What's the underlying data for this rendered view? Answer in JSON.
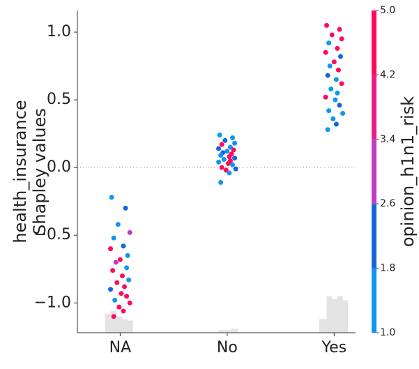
{
  "chart_data": {
    "type": "scatter",
    "ylabel": [
      "health_insurance",
      "Shapley values"
    ],
    "colorbar_label": "opinion_h1n1_risk",
    "xlim": [
      -0.4,
      2.2
    ],
    "ylim": [
      -1.22,
      1.16
    ],
    "xticks": [
      {
        "value": 0,
        "label": "NA"
      },
      {
        "value": 1,
        "label": "No"
      },
      {
        "value": 2,
        "label": "Yes"
      }
    ],
    "yticks": [
      {
        "value": 1,
        "label": "1.0"
      },
      {
        "value": 0.5,
        "label": "0.5"
      },
      {
        "value": 0,
        "label": "0.0"
      },
      {
        "value": -0.5,
        "label": "−0.5"
      },
      {
        "value": -1,
        "label": "−1.0"
      }
    ],
    "colorbar_ticks": [
      {
        "value": 1,
        "label": "1.0"
      },
      {
        "value": 1.8,
        "label": "1.8"
      },
      {
        "value": 2.6,
        "label": "2.6"
      },
      {
        "value": 3.4,
        "label": "3.4"
      },
      {
        "value": 4.2,
        "label": "4.2"
      },
      {
        "value": 5,
        "label": "5.0"
      }
    ],
    "colorbar_colors": [
      "#0d97f2",
      "#1565dd",
      "#c23bc4",
      "#ec1c88",
      "#ff0a5e"
    ],
    "zero_line": true,
    "x": [
      -0.08,
      0.05,
      -0.02,
      0.09,
      -0.06,
      0.03,
      -0.09,
      0.07,
      0.0,
      -0.04,
      0.06,
      -0.07,
      0.02,
      0.08,
      -0.03,
      0.04,
      -0.09,
      0.01,
      0.06,
      -0.05,
      0.09,
      -0.01,
      0.03,
      -0.06,
      0.93,
      1.05,
      0.98,
      1.07,
      0.95,
      1.03,
      0.92,
      1.06,
      1.0,
      0.96,
      1.04,
      0.94,
      1.02,
      1.07,
      0.97,
      1.03,
      0.92,
      1.01,
      1.05,
      0.95,
      1.08,
      0.99,
      1.02,
      0.94,
      1.93,
      2.05,
      1.98,
      2.07,
      1.95,
      2.03,
      1.92,
      2.06,
      2.0,
      1.96,
      2.04,
      1.94,
      2.02,
      2.07,
      1.97,
      2.03,
      1.92,
      2.01,
      2.05,
      1.95,
      2.08,
      1.99,
      2.02,
      1.94
    ],
    "y": [
      -0.22,
      -0.3,
      -0.42,
      -0.48,
      -0.52,
      -0.58,
      -0.6,
      -0.65,
      -0.68,
      -0.7,
      -0.74,
      -0.76,
      -0.8,
      -0.83,
      -0.85,
      -0.88,
      -0.9,
      -0.93,
      -0.95,
      -0.98,
      -1.0,
      -1.03,
      -1.06,
      -1.1,
      0.24,
      0.22,
      0.2,
      0.18,
      0.17,
      0.15,
      0.14,
      0.13,
      0.12,
      0.11,
      0.1,
      0.09,
      0.08,
      0.07,
      0.06,
      0.05,
      0.04,
      0.03,
      0.02,
      0.0,
      -0.01,
      -0.02,
      -0.04,
      -0.11,
      1.05,
      1.02,
      0.98,
      0.95,
      0.92,
      0.88,
      0.85,
      0.82,
      0.78,
      0.75,
      0.72,
      0.68,
      0.65,
      0.62,
      0.58,
      0.55,
      0.52,
      0.5,
      0.46,
      0.42,
      0.4,
      0.36,
      0.32,
      0.28
    ],
    "color_values": [
      1,
      1.8,
      1,
      2.6,
      1,
      1.8,
      5,
      1,
      4.2,
      2.6,
      1,
      5,
      5,
      1,
      4.2,
      5,
      1.8,
      5,
      5,
      1,
      4.2,
      5,
      5,
      5,
      1,
      1,
      2,
      1,
      5,
      1.5,
      2,
      5,
      1,
      2,
      4.5,
      1,
      5,
      2,
      1,
      5,
      1.5,
      5,
      1,
      5,
      2,
      5,
      1,
      1.5,
      5,
      5,
      4.5,
      5,
      1.5,
      5,
      4.5,
      2,
      5,
      1,
      4.5,
      2,
      1,
      5,
      1.5,
      1,
      5,
      1,
      2,
      1,
      1.5,
      1,
      2,
      1.5
    ],
    "histograms": [
      {
        "bins": [
          -0.14,
          -0.09,
          -0.04,
          0.02,
          0.07,
          0.12
        ],
        "values": [
          -1.08,
          -1.06,
          -1.1,
          -1.12,
          -1.13
        ]
      },
      {
        "bins": [
          0.92,
          0.98,
          1.04,
          1.1
        ],
        "values": [
          -1.2,
          -1.2,
          -1.19
        ]
      },
      {
        "bins": [
          1.86,
          1.93,
          1.98,
          2.03,
          2.08,
          2.13
        ],
        "values": [
          -1.12,
          -0.95,
          -0.97,
          -0.95,
          -0.98
        ]
      }
    ]
  }
}
